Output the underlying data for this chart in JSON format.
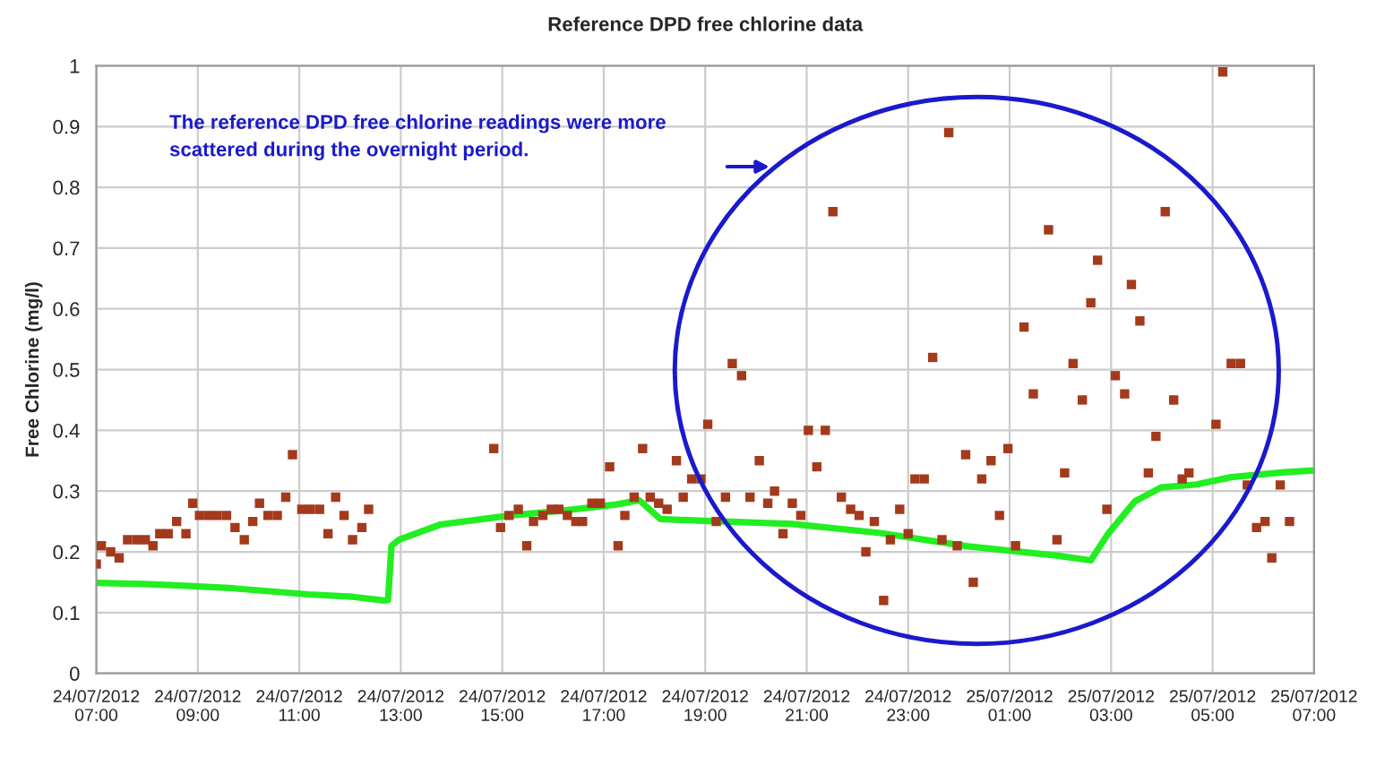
{
  "chart_data": {
    "type": "scatter",
    "title": "Reference DPD free chlorine data",
    "ylabel": "Free Chlorine (mg/l)",
    "annotations": [
      "The reference DPD free chlorine readings were more\nscattered during the overnight period."
    ],
    "xlim": [
      "2012-07-24T07:00",
      "2012-07-25T07:00"
    ],
    "ylim": [
      0,
      1
    ],
    "xticks": [
      {
        "value": "2012-07-24T07:00",
        "label": "24/07/2012\n07:00"
      },
      {
        "value": "2012-07-24T09:00",
        "label": "24/07/2012\n09:00"
      },
      {
        "value": "2012-07-24T11:00",
        "label": "24/07/2012\n11:00"
      },
      {
        "value": "2012-07-24T13:00",
        "label": "24/07/2012\n13:00"
      },
      {
        "value": "2012-07-24T15:00",
        "label": "24/07/2012\n15:00"
      },
      {
        "value": "2012-07-24T17:00",
        "label": "24/07/2012\n17:00"
      },
      {
        "value": "2012-07-24T19:00",
        "label": "24/07/2012\n19:00"
      },
      {
        "value": "2012-07-24T21:00",
        "label": "24/07/2012\n21:00"
      },
      {
        "value": "2012-07-24T23:00",
        "label": "24/07/2012\n23:00"
      },
      {
        "value": "2012-07-25T01:00",
        "label": "25/07/2012\n01:00"
      },
      {
        "value": "2012-07-25T03:00",
        "label": "25/07/2012\n03:00"
      },
      {
        "value": "2012-07-25T05:00",
        "label": "25/07/2012\n05:00"
      },
      {
        "value": "2012-07-25T07:00",
        "label": "25/07/2012\n07:00"
      }
    ],
    "yticks": [
      0,
      0.1,
      0.2,
      0.3,
      0.4,
      0.5,
      0.6,
      0.7,
      0.8,
      0.9,
      1
    ],
    "grid": true,
    "series": [
      {
        "marker": "square",
        "color": "#a33a1c",
        "x": [
          "2012-07-24T07:00",
          "2012-07-24T07:06",
          "2012-07-24T07:17",
          "2012-07-24T07:27",
          "2012-07-24T07:37",
          "2012-07-24T07:48",
          "2012-07-24T07:58",
          "2012-07-24T08:07",
          "2012-07-24T08:15",
          "2012-07-24T08:25",
          "2012-07-24T08:35",
          "2012-07-24T08:46",
          "2012-07-24T08:54",
          "2012-07-24T09:02",
          "2012-07-24T09:13",
          "2012-07-24T09:23",
          "2012-07-24T09:34",
          "2012-07-24T09:44",
          "2012-07-24T09:55",
          "2012-07-24T10:05",
          "2012-07-24T10:13",
          "2012-07-24T10:23",
          "2012-07-24T10:34",
          "2012-07-24T10:44",
          "2012-07-24T10:52",
          "2012-07-24T11:03",
          "2012-07-24T11:13",
          "2012-07-24T11:24",
          "2012-07-24T11:34",
          "2012-07-24T11:43",
          "2012-07-24T11:53",
          "2012-07-24T12:03",
          "2012-07-24T12:14",
          "2012-07-24T12:22",
          "2012-07-24T14:50",
          "2012-07-24T14:58",
          "2012-07-24T15:08",
          "2012-07-24T15:19",
          "2012-07-24T15:29",
          "2012-07-24T15:37",
          "2012-07-24T15:48",
          "2012-07-24T15:58",
          "2012-07-24T16:07",
          "2012-07-24T16:17",
          "2012-07-24T16:27",
          "2012-07-24T16:35",
          "2012-07-24T16:46",
          "2012-07-24T16:56",
          "2012-07-24T17:07",
          "2012-07-24T17:17",
          "2012-07-24T17:25",
          "2012-07-24T17:36",
          "2012-07-24T17:46",
          "2012-07-24T17:55",
          "2012-07-24T18:05",
          "2012-07-24T18:15",
          "2012-07-24T18:26",
          "2012-07-24T18:34",
          "2012-07-24T18:44",
          "2012-07-24T18:55",
          "2012-07-24T19:03",
          "2012-07-24T19:13",
          "2012-07-24T19:24",
          "2012-07-24T19:32",
          "2012-07-24T19:43",
          "2012-07-24T19:53",
          "2012-07-24T20:04",
          "2012-07-24T20:14",
          "2012-07-24T20:22",
          "2012-07-24T20:32",
          "2012-07-24T20:43",
          "2012-07-24T20:53",
          "2012-07-24T21:02",
          "2012-07-24T21:12",
          "2012-07-24T21:22",
          "2012-07-24T21:31",
          "2012-07-24T21:41",
          "2012-07-24T21:52",
          "2012-07-24T22:02",
          "2012-07-24T22:10",
          "2012-07-24T22:20",
          "2012-07-24T22:31",
          "2012-07-24T22:39",
          "2012-07-24T22:50",
          "2012-07-24T23:00",
          "2012-07-24T23:08",
          "2012-07-24T23:19",
          "2012-07-24T23:29",
          "2012-07-24T23:40",
          "2012-07-24T23:48",
          "2012-07-24T23:58",
          "2012-07-25T00:08",
          "2012-07-25T00:17",
          "2012-07-25T00:27",
          "2012-07-25T00:38",
          "2012-07-25T00:48",
          "2012-07-25T00:58",
          "2012-07-25T01:07",
          "2012-07-25T01:17",
          "2012-07-25T01:28",
          "2012-07-25T01:46",
          "2012-07-25T01:56",
          "2012-07-25T02:05",
          "2012-07-25T02:15",
          "2012-07-25T02:26",
          "2012-07-25T02:36",
          "2012-07-25T02:44",
          "2012-07-25T02:55",
          "2012-07-25T03:05",
          "2012-07-25T03:16",
          "2012-07-25T03:24",
          "2012-07-25T03:34",
          "2012-07-25T03:44",
          "2012-07-25T03:53",
          "2012-07-25T04:04",
          "2012-07-25T04:14",
          "2012-07-25T04:24",
          "2012-07-25T04:32",
          "2012-07-25T05:04",
          "2012-07-25T05:12",
          "2012-07-25T05:22",
          "2012-07-25T05:33",
          "2012-07-25T05:41",
          "2012-07-25T05:52",
          "2012-07-25T06:02",
          "2012-07-25T06:10",
          "2012-07-25T06:20",
          "2012-07-25T06:31"
        ],
        "values": [
          0.18,
          0.21,
          0.2,
          0.19,
          0.22,
          0.22,
          0.22,
          0.21,
          0.23,
          0.23,
          0.25,
          0.23,
          0.28,
          0.26,
          0.26,
          0.26,
          0.26,
          0.24,
          0.22,
          0.25,
          0.28,
          0.26,
          0.26,
          0.29,
          0.36,
          0.27,
          0.27,
          0.27,
          0.23,
          0.29,
          0.26,
          0.22,
          0.24,
          0.27,
          0.37,
          0.24,
          0.26,
          0.27,
          0.21,
          0.25,
          0.26,
          0.27,
          0.27,
          0.26,
          0.25,
          0.25,
          0.28,
          0.28,
          0.34,
          0.21,
          0.26,
          0.29,
          0.37,
          0.29,
          0.28,
          0.27,
          0.35,
          0.29,
          0.32,
          0.32,
          0.41,
          0.25,
          0.29,
          0.51,
          0.49,
          0.29,
          0.35,
          0.28,
          0.3,
          0.23,
          0.28,
          0.26,
          0.4,
          0.34,
          0.4,
          0.76,
          0.29,
          0.27,
          0.26,
          0.2,
          0.25,
          0.12,
          0.22,
          0.27,
          0.23,
          0.32,
          0.32,
          0.52,
          0.22,
          0.89,
          0.21,
          0.36,
          0.15,
          0.32,
          0.35,
          0.26,
          0.37,
          0.21,
          0.57,
          0.46,
          0.73,
          0.22,
          0.33,
          0.51,
          0.45,
          0.61,
          0.68,
          0.27,
          0.49,
          0.46,
          0.64,
          0.58,
          0.33,
          0.39,
          0.76,
          0.45,
          0.32,
          0.33,
          0.41,
          0.99,
          0.51,
          0.51,
          0.31,
          0.24,
          0.25,
          0.19,
          0.31,
          0.25
        ]
      },
      {
        "type": "line",
        "color": "#22ee22",
        "x": [
          "2012-07-24T07:00",
          "2012-07-24T07:54",
          "2012-07-24T08:35",
          "2012-07-24T09:42",
          "2012-07-24T11:11",
          "2012-07-24T12:03",
          "2012-07-24T12:41",
          "2012-07-24T12:45",
          "2012-07-24T12:49",
          "2012-07-24T12:58",
          "2012-07-24T13:47",
          "2012-07-24T15:10",
          "2012-07-24T16:13",
          "2012-07-24T17:15",
          "2012-07-24T17:42",
          "2012-07-24T18:07",
          "2012-07-24T18:59",
          "2012-07-24T20:43",
          "2012-07-24T22:27",
          "2012-07-25T00:11",
          "2012-07-25T01:55",
          "2012-07-25T02:36",
          "2012-07-25T02:56",
          "2012-07-25T03:28",
          "2012-07-25T03:59",
          "2012-07-25T04:41",
          "2012-07-25T05:22",
          "2012-07-25T06:25",
          "2012-07-25T07:00"
        ],
        "values": [
          0.149,
          0.147,
          0.145,
          0.14,
          0.13,
          0.126,
          0.12,
          0.121,
          0.21,
          0.22,
          0.245,
          0.26,
          0.268,
          0.278,
          0.285,
          0.254,
          0.251,
          0.246,
          0.231,
          0.209,
          0.194,
          0.186,
          0.229,
          0.283,
          0.306,
          0.311,
          0.323,
          0.331,
          0.334
        ]
      }
    ]
  }
}
